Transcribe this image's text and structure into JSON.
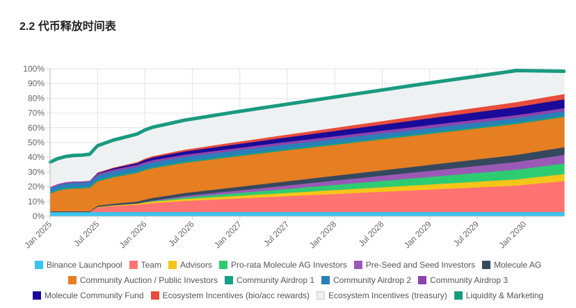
{
  "title": "2.2 代币释放时间表",
  "chart_data": {
    "type": "area",
    "stacked": true,
    "x_ticks": [
      "Jan 2025",
      "Jul 2025",
      "Jan 2026",
      "Jul 2026",
      "Jan 2027",
      "Jul 2027",
      "Jan 2028",
      "Jul 2028",
      "Jan 2029",
      "Jul 2029",
      "Jan 2030"
    ],
    "y_ticks": [
      "0%",
      "10%",
      "20%",
      "30%",
      "40%",
      "50%",
      "60%",
      "70%",
      "80%",
      "90%",
      "100%"
    ],
    "ylim": [
      0,
      100
    ],
    "x_range_months": [
      "2025-01",
      "2030-06"
    ],
    "x_points": [
      "2025-01",
      "2025-02",
      "2025-03",
      "2025-04",
      "2025-05",
      "2025-06",
      "2025-07",
      "2025-09",
      "2025-12",
      "2026-01",
      "2026-02",
      "2026-06",
      "2026-12",
      "2027-06",
      "2027-12",
      "2028-06",
      "2028-12",
      "2029-06",
      "2029-12",
      "2030-06"
    ],
    "grid": true,
    "legend_position": "bottom",
    "series": [
      {
        "name": "Binance Launchpool",
        "color": "#36c5f0",
        "values": [
          3,
          3,
          3,
          3,
          3,
          3,
          3,
          3,
          3,
          3,
          3,
          3,
          3,
          3,
          3,
          3,
          3,
          3,
          3,
          3
        ]
      },
      {
        "name": "Team",
        "color": "#ff7373",
        "values": [
          0,
          0,
          0,
          0,
          0,
          0,
          3,
          4,
          5,
          5.5,
          6,
          7.5,
          9,
          10.5,
          12,
          13.5,
          15,
          16.5,
          18,
          21
        ]
      },
      {
        "name": "Advisors",
        "color": "#f5c518",
        "values": [
          0,
          0,
          0,
          0,
          0,
          0,
          0.5,
          0.6,
          0.8,
          1,
          1.1,
          1.4,
          1.8,
          2.2,
          2.6,
          3,
          3.4,
          3.8,
          4.2,
          4.8
        ]
      },
      {
        "name": "Pro-rata Molecule AG Investors",
        "color": "#2ecc71",
        "values": [
          0,
          0,
          0,
          0,
          0,
          0,
          0,
          0,
          0,
          0.2,
          0.4,
          1,
          1.8,
          2.6,
          3.4,
          4.2,
          5,
          5.8,
          6.6,
          7.2
        ]
      },
      {
        "name": "Pre-Seed and Seed Investors",
        "color": "#9b59b6",
        "values": [
          0,
          0,
          0,
          0,
          0,
          0,
          0,
          0,
          0,
          0.2,
          0.4,
          1,
          1.6,
          2.2,
          2.8,
          3.4,
          4,
          4.6,
          5.2,
          5.8
        ]
      },
      {
        "name": "Molecule AG",
        "color": "#34495e",
        "values": [
          0.5,
          0.5,
          0.5,
          0.5,
          0.5,
          0.5,
          0.8,
          1,
          1.3,
          1.5,
          1.7,
          2,
          2.4,
          2.8,
          3.2,
          3.6,
          4,
          4.4,
          4.8,
          5.2
        ]
      },
      {
        "name": "Community Auction / Public Investors",
        "color": "#e67e22",
        "values": [
          12,
          14,
          15,
          15.5,
          15.5,
          16,
          16.5,
          18,
          19.5,
          20,
          20.2,
          20.5,
          20.8,
          21,
          21,
          21,
          21,
          21,
          21,
          20.5
        ]
      },
      {
        "name": "Community Airdrop 1",
        "color": "#16a085",
        "values": [
          1,
          1,
          1,
          1,
          1,
          1,
          1,
          1,
          1,
          1,
          1,
          1,
          1,
          1,
          1,
          1,
          1,
          1,
          1,
          1
        ]
      },
      {
        "name": "Community Airdrop 2",
        "color": "#2980b9",
        "values": [
          2.5,
          2.6,
          2.8,
          2.8,
          2.8,
          2.8,
          3,
          3,
          3,
          3,
          3,
          3,
          3,
          3,
          3,
          3,
          3,
          3,
          3,
          3
        ]
      },
      {
        "name": "Community Airdrop 3",
        "color": "#8e44ad",
        "values": [
          1,
          1,
          1,
          1,
          1,
          1,
          1.2,
          1.3,
          1.4,
          1.5,
          1.5,
          1.5,
          1.6,
          1.7,
          1.8,
          1.9,
          2,
          2,
          2,
          2
        ]
      },
      {
        "name": "Molecule Community Fund",
        "color": "#1a0a99",
        "values": [
          0,
          0,
          0,
          0,
          0,
          0,
          0.5,
          0.8,
          1.2,
          1.6,
          1.8,
          2.2,
          2.6,
          3.0,
          3.5,
          4.0,
          4.5,
          5.0,
          5.5,
          6.0
        ]
      },
      {
        "name": "Ecosystem Incentives (bio/acc rewards)",
        "color": "#e74c3c",
        "values": [
          0,
          0,
          0,
          0,
          0,
          0,
          0.3,
          0.5,
          0.7,
          0.8,
          0.9,
          1.2,
          1.5,
          1.8,
          2.1,
          2.4,
          2.7,
          3.0,
          3.3,
          3.6
        ]
      },
      {
        "name": "Ecosystem Incentives (treasury)",
        "color": "#eef1f2",
        "values": [
          16.5,
          16.8,
          17,
          17.2,
          17.4,
          17.5,
          17.8,
          18.2,
          18.6,
          19,
          19.2,
          19.6,
          20,
          20.2,
          20.4,
          20.6,
          20.8,
          20.9,
          21,
          15
        ]
      },
      {
        "name": "Liquidity & Marketing",
        "color": "#1a9a80",
        "values": [
          0.5,
          0.5,
          0.5,
          0.5,
          0.5,
          0.5,
          0.5,
          0.5,
          0.5,
          0.5,
          0.5,
          0.5,
          0.5,
          0.5,
          0.5,
          0.5,
          0.5,
          0.5,
          0.5,
          0.5
        ]
      }
    ]
  }
}
